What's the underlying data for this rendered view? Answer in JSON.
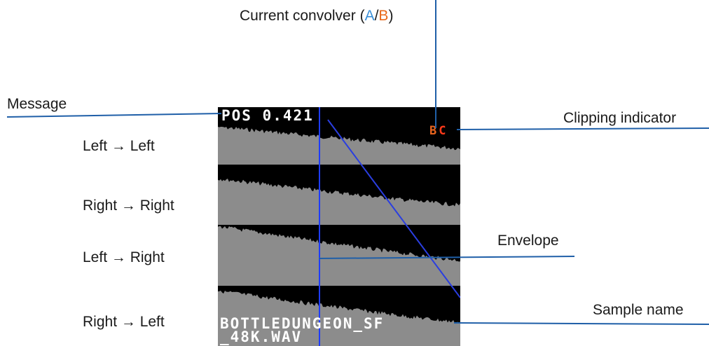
{
  "annotations": {
    "convolver_prefix": "Current convolver (",
    "convolver_a": "A",
    "convolver_sep": "/",
    "convolver_b": "B",
    "convolver_suffix": ")",
    "message": "Message",
    "clipping": "Clipping indicator",
    "envelope": "Envelope",
    "sample_name": "Sample name"
  },
  "row_labels": [
    "Left → Left",
    "Right → Right",
    "Left → Right",
    "Right → Left"
  ],
  "display": {
    "message": "POS 0.421",
    "clip_first": "B",
    "clip_second": "C",
    "sample_name_line1": "BOTTLEDUNGEON_SF",
    "sample_name_line2": "_48K.WAV"
  },
  "colors": {
    "annotation_line": "#1f5fa8",
    "display_background": "#000000",
    "waveform": "#8c8c8c",
    "cursor": "#1e3cff",
    "envelope": "#2a3ee0",
    "accent_a": "#3a8fd8",
    "accent_b": "#e8691a"
  },
  "icons": [
    "arrow-right-icon"
  ]
}
